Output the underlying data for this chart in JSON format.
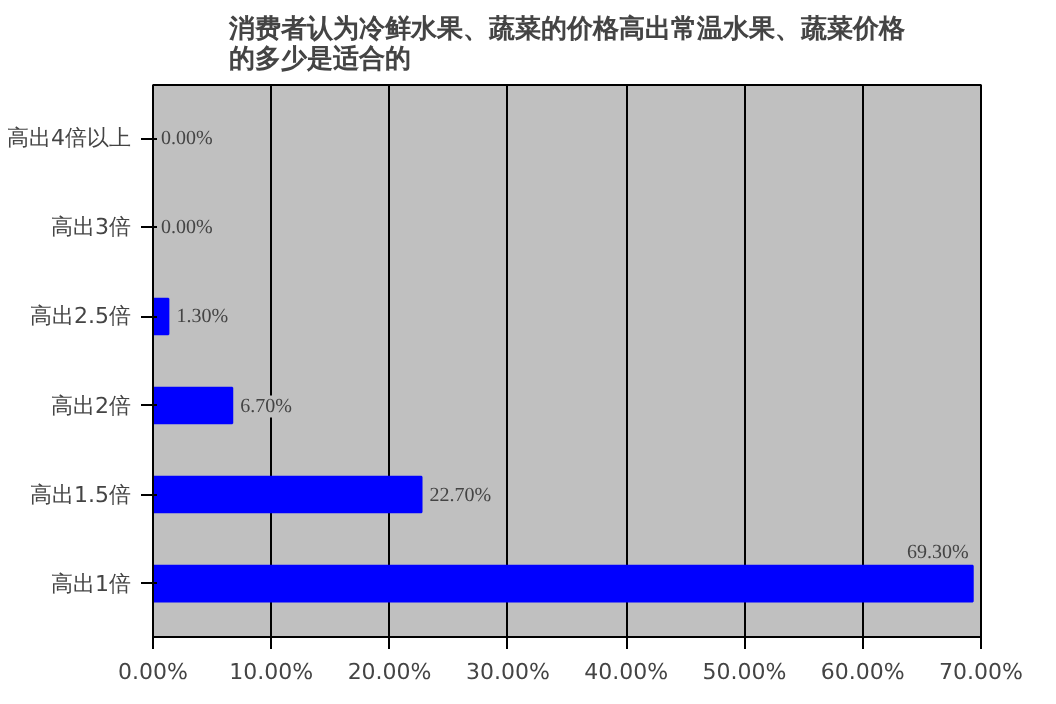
{
  "chart_data": {
    "type": "bar",
    "orientation": "horizontal",
    "title": "消费者认为冷鲜水果、蔬菜的价格高出常温水果、蔬菜价格的多少是适合的",
    "categories": [
      "高出4倍以上",
      "高出3倍",
      "高出2.5倍",
      "高出2倍",
      "高出1.5倍",
      "高出1倍"
    ],
    "values": [
      0,
      0,
      1.3,
      6.7,
      22.7,
      69.3
    ],
    "value_labels": [
      "0.00%",
      "0.00%",
      "1.30%",
      "6.70%",
      "22.70%",
      "69.30%"
    ],
    "color": "#0000ff",
    "xlim": [
      0,
      70
    ],
    "xticks": [
      {
        "value": 0,
        "label": "0.00%"
      },
      {
        "value": 10,
        "label": "10.00%"
      },
      {
        "value": 20,
        "label": "20.00%"
      },
      {
        "value": 30,
        "label": "30.00%"
      },
      {
        "value": 40,
        "label": "40.00%"
      },
      {
        "value": 50,
        "label": "50.00%"
      },
      {
        "value": 60,
        "label": "60.00%"
      },
      {
        "value": 70,
        "label": "70.00%"
      }
    ],
    "grid": "x"
  }
}
